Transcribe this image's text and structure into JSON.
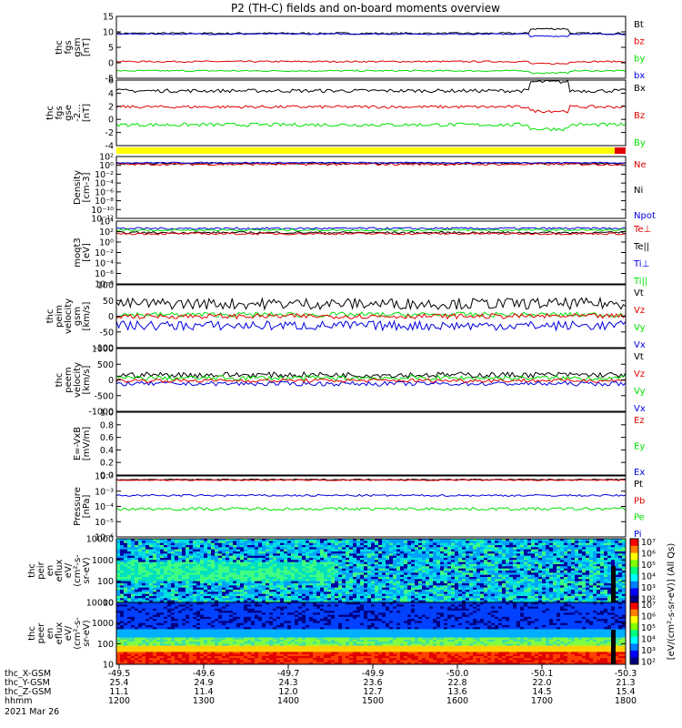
{
  "title": "P2 (TH-C) fields and on-board moments overview",
  "colors": {
    "black": "#000000",
    "red": "#e00000",
    "green": "#00e000",
    "blue": "#0000e0",
    "yellow": "#ffff00"
  },
  "panels": [
    {
      "id": "fgs-gsm",
      "ylabel": [
        "thc",
        "fgs",
        "gsm",
        "[nT]"
      ],
      "scale": "linear",
      "ylim": [
        -5,
        15
      ],
      "ticks": [
        "15",
        "10",
        "5",
        "0",
        "-5"
      ],
      "legend": [
        {
          "name": "Bt",
          "color": "black"
        },
        {
          "name": "bz",
          "color": "red"
        },
        {
          "name": "by",
          "color": "green"
        },
        {
          "name": "bx",
          "color": "blue"
        }
      ],
      "series": [
        {
          "name": "Bt",
          "color": "black",
          "base": 9.5,
          "noise": 0.3
        },
        {
          "name": "bz",
          "color": "red",
          "base": 0.4,
          "noise": 0.25
        },
        {
          "name": "by",
          "color": "green",
          "base": -2.6,
          "noise": 0.25
        },
        {
          "name": "bx",
          "color": "blue",
          "base": 9.3,
          "noise": 0.2
        }
      ]
    },
    {
      "id": "fgs-gse",
      "ylabel": [
        "thc",
        "fgs",
        "gse",
        "-2...",
        "[nT]"
      ],
      "scale": "linear",
      "ylim": [
        -5,
        6
      ],
      "ticks": [
        "6",
        "4",
        "2",
        "0",
        "-2",
        "-4"
      ],
      "legend": [
        {
          "name": "Bx",
          "color": "black"
        },
        {
          "name": "Bz",
          "color": "red"
        },
        {
          "name": "By",
          "color": "green"
        }
      ],
      "series": [
        {
          "name": "Bx",
          "color": "black",
          "base": 4.2,
          "noise": 0.3
        },
        {
          "name": "Bz",
          "color": "red",
          "base": 1.5,
          "noise": 0.25
        },
        {
          "name": "By",
          "color": "green",
          "base": -1.5,
          "noise": 0.3
        }
      ]
    },
    {
      "id": "density",
      "ylabel": [
        "Density",
        "[cm-3]"
      ],
      "scale": "log",
      "ylim": [
        -13,
        3
      ],
      "ticks": [
        "10²",
        "10⁰",
        "10⁻²",
        "10⁻⁴",
        "10⁻⁶",
        "10⁻⁸",
        "10⁻¹⁰",
        "10⁻¹²"
      ],
      "legend": [
        {
          "name": "Ne",
          "color": "red"
        },
        {
          "name": "Ni",
          "color": "black"
        },
        {
          "name": "Npot",
          "color": "blue"
        }
      ],
      "series": [
        {
          "name": "Ni",
          "color": "black",
          "base": 1.2,
          "noise": 0.25
        },
        {
          "name": "Ne",
          "color": "red",
          "base": 1.0,
          "noise": 0.3
        },
        {
          "name": "Npot",
          "color": "blue",
          "base": 1.4,
          "noise": 0.15
        }
      ]
    },
    {
      "id": "temperature",
      "ylabel": [
        "moqt3",
        "[eV]"
      ],
      "scale": "log",
      "ylim": [
        -8,
        4
      ],
      "ticks": [
        "10⁴",
        "10²",
        "10⁰",
        "10⁻²",
        "10⁻⁴",
        "10⁻⁶",
        "10⁻⁸"
      ],
      "legend": [
        {
          "name": "Te⊥",
          "color": "red"
        },
        {
          "name": "Te||",
          "color": "black"
        },
        {
          "name": "Ti⊥",
          "color": "blue"
        },
        {
          "name": "Ti||",
          "color": "green"
        }
      ],
      "series": [
        {
          "name": "Ti⊥",
          "color": "blue",
          "base": 2.6,
          "noise": 0.2
        },
        {
          "name": "Ti||",
          "color": "green",
          "base": 2.3,
          "noise": 0.2
        },
        {
          "name": "Te||",
          "color": "black",
          "base": 1.8,
          "noise": 0.2
        },
        {
          "name": "Te⊥",
          "color": "red",
          "base": 1.6,
          "noise": 0.2
        }
      ]
    },
    {
      "id": "peim-velocity",
      "ylabel": [
        "thc",
        "peim",
        "velocity",
        "gsm",
        "[km/s]"
      ],
      "scale": "linear",
      "ylim": [
        -100,
        100
      ],
      "ticks": [
        "100",
        "50",
        "0",
        "-50",
        "-100"
      ],
      "legend": [
        {
          "name": "Vt",
          "color": "black"
        },
        {
          "name": "Vz",
          "color": "red"
        },
        {
          "name": "Vy",
          "color": "green"
        },
        {
          "name": "Vx",
          "color": "blue"
        }
      ],
      "series": [
        {
          "name": "Vt",
          "color": "black",
          "base": 40,
          "noise": 18
        },
        {
          "name": "Vy",
          "color": "green",
          "base": 5,
          "noise": 8
        },
        {
          "name": "Vx",
          "color": "blue",
          "base": -30,
          "noise": 15
        },
        {
          "name": "Vz",
          "color": "red",
          "base": 0,
          "noise": 8
        }
      ]
    },
    {
      "id": "peem-velocity",
      "ylabel": [
        "thc",
        "peem",
        "velocity",
        "[km/s]"
      ],
      "scale": "linear",
      "ylim": [
        -1000,
        1000
      ],
      "ticks": [
        "1000",
        "500",
        "0",
        "-500",
        "-1000"
      ],
      "legend": [
        {
          "name": "Vt",
          "color": "black"
        },
        {
          "name": "Vz",
          "color": "red"
        },
        {
          "name": "Vy",
          "color": "green"
        },
        {
          "name": "Vx",
          "color": "blue"
        }
      ],
      "series": [
        {
          "name": "Vt",
          "color": "black",
          "base": 160,
          "noise": 90
        },
        {
          "name": "Vy",
          "color": "green",
          "base": 60,
          "noise": 80
        },
        {
          "name": "Vx",
          "color": "blue",
          "base": -120,
          "noise": 70
        },
        {
          "name": "Vz",
          "color": "red",
          "base": -20,
          "noise": 60
        }
      ]
    },
    {
      "id": "efield",
      "ylabel": [
        "E=-VxB",
        "[mV/m]"
      ],
      "scale": "linear",
      "ylim": [
        0,
        1
      ],
      "ticks": [
        "1.0",
        "0.8",
        "0.6",
        "0.4",
        "0.2",
        "0.0"
      ],
      "legend": [
        {
          "name": "Ez",
          "color": "red"
        },
        {
          "name": "Ey",
          "color": "green"
        },
        {
          "name": "Ex",
          "color": "blue"
        }
      ],
      "series": []
    },
    {
      "id": "pressure",
      "ylabel": [
        "Pressure",
        "[nPa]"
      ],
      "scale": "log",
      "ylim": [
        -6,
        -1
      ],
      "ticks": [
        "10⁻²",
        "10⁻³",
        "10⁻⁴",
        "10⁻⁵",
        "10⁻⁶"
      ],
      "legend": [
        {
          "name": "Pt",
          "color": "black"
        },
        {
          "name": "Pb",
          "color": "red"
        },
        {
          "name": "Pe",
          "color": "green"
        },
        {
          "name": "Pi",
          "color": "blue"
        }
      ],
      "series": [
        {
          "name": "Pt",
          "color": "black",
          "base": -1.3,
          "noise": 0.04
        },
        {
          "name": "Pb",
          "color": "red",
          "base": -1.35,
          "noise": 0.04
        },
        {
          "name": "Pi",
          "color": "blue",
          "base": -2.6,
          "noise": 0.08
        },
        {
          "name": "Pe",
          "color": "green",
          "base": -3.7,
          "noise": 0.12
        }
      ]
    },
    {
      "id": "peir-eflux",
      "ylabel": [
        "thc",
        "peir",
        "en",
        "eflux",
        "eV/",
        "(cm²-s-",
        "sr-eV)"
      ],
      "scale": "log",
      "ylim": [
        0.7,
        4.2
      ],
      "ticks": [
        "10000",
        "1000",
        "100",
        "10"
      ],
      "legend": []
    },
    {
      "id": "peer-eflux",
      "ylabel": [
        "thc",
        "peer",
        "en",
        "eflux",
        "eV/",
        "(cm²-s-",
        "sr-eV)"
      ],
      "scale": "log",
      "ylim": [
        0.7,
        4.2
      ],
      "ticks": [
        "10000",
        "1000",
        "100",
        "10"
      ],
      "legend": []
    }
  ],
  "colorbar": {
    "label": "[eV/(cm²-s-sr-eV)] (All Qs)",
    "ticks": [
      "10⁷",
      "10⁶",
      "10⁵",
      "10⁴",
      "10³",
      "10²",
      "10⁷",
      "10⁶",
      "10⁵",
      "10⁴",
      "10³",
      "10²"
    ]
  },
  "chart_data": {
    "type": "line",
    "title": "P2 (TH-C) fields and on-board moments overview",
    "x_rows": [
      {
        "label": "thc_X-GSM",
        "values": [
          "-49.5",
          "-49.6",
          "-49.7",
          "-49.9",
          "-50.0",
          "-50.1",
          "-50.3"
        ]
      },
      {
        "label": "thc_Y-GSM",
        "values": [
          "25.4",
          "24.9",
          "24.3",
          "23.6",
          "22.8",
          "22.0",
          "21.3"
        ]
      },
      {
        "label": "thc_Z-GSM",
        "values": [
          "11.1",
          "11.4",
          "12.0",
          "12.7",
          "13.6",
          "14.5",
          "15.4"
        ]
      },
      {
        "label": "hhmm",
        "values": [
          "1200",
          "1300",
          "1400",
          "1500",
          "1600",
          "1700",
          "1800"
        ]
      }
    ],
    "date": "2021 Mar 26",
    "x": [
      "1200",
      "1300",
      "1400",
      "1500",
      "1600",
      "1700",
      "1800"
    ],
    "series": [
      {
        "name": "Bt",
        "values": [
          9.8,
          9.6,
          9.4,
          9.5,
          9.7,
          11.5,
          9.2
        ]
      },
      {
        "name": "bz",
        "values": [
          0.5,
          0.3,
          0.2,
          0.4,
          0.6,
          1.0,
          0.2
        ]
      },
      {
        "name": "by",
        "values": [
          -2.5,
          -2.7,
          -2.6,
          -2.6,
          -2.5,
          -3.5,
          -2.6
        ]
      },
      {
        "name": "Bx",
        "values": [
          4.0,
          4.3,
          4.1,
          4.5,
          4.6,
          5.5,
          3.0
        ]
      },
      {
        "name": "Bz",
        "values": [
          1.5,
          1.5,
          1.5,
          1.6,
          1.8,
          1.5,
          1.2
        ]
      },
      {
        "name": "By",
        "values": [
          -1.6,
          -1.4,
          -1.5,
          -1.3,
          -1.4,
          -2.2,
          -1.0
        ]
      },
      {
        "name": "Vt (peim)",
        "values": [
          45,
          50,
          35,
          40,
          35,
          25,
          20
        ]
      },
      {
        "name": "Vx (peim)",
        "values": [
          -35,
          -40,
          -30,
          -25,
          -15,
          -10,
          -5
        ]
      },
      {
        "name": "Vt (peem)",
        "values": [
          150,
          160,
          150,
          170,
          200,
          300,
          250
        ]
      }
    ]
  }
}
